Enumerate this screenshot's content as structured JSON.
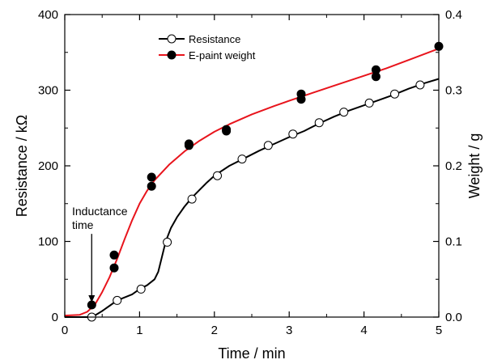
{
  "chart_data": {
    "type": "line",
    "xlabel": "Time / min",
    "ylabel_left": "Resistance / kΩ",
    "ylabel_right": "Weight / g",
    "xlim": [
      0,
      5
    ],
    "ylim_left": [
      0,
      400
    ],
    "ylim_right": [
      0,
      0.4
    ],
    "x_ticks": [
      "0",
      "1",
      "2",
      "3",
      "4",
      "5"
    ],
    "y_left_ticks": [
      "0",
      "100",
      "200",
      "300",
      "400"
    ],
    "y_right_ticks": [
      "0.0",
      "0.1",
      "0.2",
      "0.3",
      "0.4"
    ],
    "grid": false,
    "legend_position": "top-center",
    "annotation": {
      "lines": [
        "Inductance",
        "time"
      ],
      "arrow_x": 0.36,
      "arrow_to_y": 15,
      "arrow_from_y": 110
    },
    "series": [
      {
        "name": "Resistance",
        "axis": "left",
        "color": "#000000",
        "marker": "open-circle",
        "line": [
          [
            0,
            0
          ],
          [
            0.3,
            0
          ],
          [
            0.4,
            2
          ],
          [
            0.5,
            8
          ],
          [
            0.6,
            15
          ],
          [
            0.7,
            22
          ],
          [
            0.8,
            26
          ],
          [
            0.9,
            30
          ],
          [
            1.0,
            37
          ],
          [
            1.1,
            42
          ],
          [
            1.2,
            50
          ],
          [
            1.25,
            60
          ],
          [
            1.3,
            80
          ],
          [
            1.35,
            100
          ],
          [
            1.42,
            118
          ],
          [
            1.5,
            132
          ],
          [
            1.6,
            146
          ],
          [
            1.7,
            158
          ],
          [
            1.8,
            168
          ],
          [
            1.9,
            178
          ],
          [
            2.0,
            187
          ],
          [
            2.2,
            200
          ],
          [
            2.4,
            210
          ],
          [
            2.6,
            220
          ],
          [
            2.8,
            229
          ],
          [
            3.0,
            238
          ],
          [
            3.2,
            246
          ],
          [
            3.4,
            256
          ],
          [
            3.6,
            265
          ],
          [
            3.8,
            273
          ],
          [
            4.0,
            280
          ],
          [
            4.2,
            287
          ],
          [
            4.4,
            294
          ],
          [
            4.6,
            302
          ],
          [
            4.8,
            309
          ],
          [
            5.0,
            315
          ]
        ],
        "markers": [
          [
            0.36,
            0
          ],
          [
            0.7,
            22
          ],
          [
            1.02,
            37
          ],
          [
            1.37,
            99
          ],
          [
            1.7,
            156
          ],
          [
            2.04,
            187
          ],
          [
            2.37,
            209
          ],
          [
            2.72,
            227
          ],
          [
            3.05,
            242
          ],
          [
            3.4,
            257
          ],
          [
            3.73,
            271
          ],
          [
            4.07,
            283
          ],
          [
            4.41,
            295
          ],
          [
            4.75,
            307
          ]
        ]
      },
      {
        "name": "E-paint weight",
        "axis": "right",
        "color": "#e8141c",
        "marker": "filled-circle",
        "line": [
          [
            0,
            0.002
          ],
          [
            0.2,
            0.003
          ],
          [
            0.3,
            0.007
          ],
          [
            0.4,
            0.016
          ],
          [
            0.5,
            0.033
          ],
          [
            0.6,
            0.053
          ],
          [
            0.7,
            0.077
          ],
          [
            0.8,
            0.103
          ],
          [
            0.9,
            0.128
          ],
          [
            1.0,
            0.15
          ],
          [
            1.1,
            0.167
          ],
          [
            1.2,
            0.181
          ],
          [
            1.4,
            0.202
          ],
          [
            1.6,
            0.219
          ],
          [
            1.8,
            0.233
          ],
          [
            2.0,
            0.245
          ],
          [
            2.2,
            0.255
          ],
          [
            2.5,
            0.268
          ],
          [
            2.8,
            0.279
          ],
          [
            3.0,
            0.286
          ],
          [
            3.3,
            0.296
          ],
          [
            3.6,
            0.306
          ],
          [
            4.0,
            0.319
          ],
          [
            4.3,
            0.329
          ],
          [
            4.6,
            0.34
          ],
          [
            5.0,
            0.355
          ]
        ],
        "markers": [
          [
            0.36,
            0.016
          ],
          [
            0.66,
            0.082
          ],
          [
            0.66,
            0.065
          ],
          [
            1.16,
            0.185
          ],
          [
            1.16,
            0.173
          ],
          [
            1.66,
            0.229
          ],
          [
            1.66,
            0.227
          ],
          [
            2.16,
            0.248
          ],
          [
            2.16,
            0.246
          ],
          [
            3.16,
            0.295
          ],
          [
            3.16,
            0.288
          ],
          [
            4.16,
            0.327
          ],
          [
            4.16,
            0.318
          ],
          [
            5.0,
            0.358
          ]
        ]
      }
    ]
  }
}
